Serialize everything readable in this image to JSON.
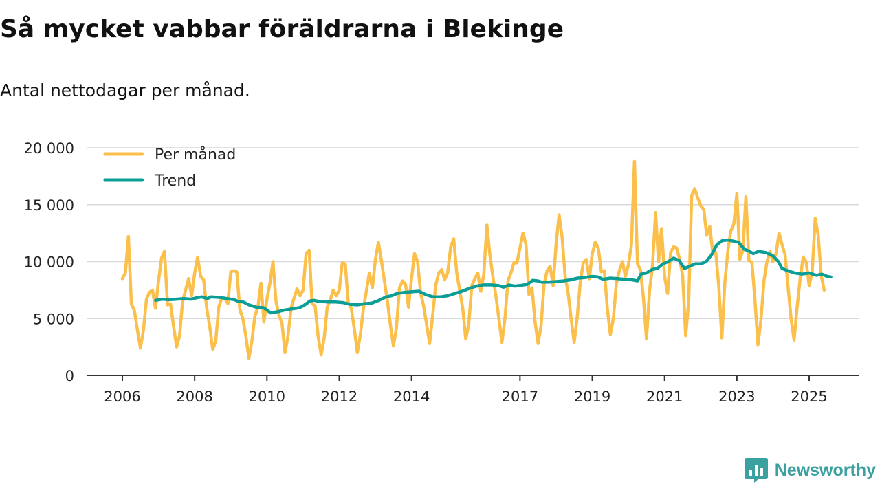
{
  "chart_data": {
    "type": "line",
    "title": "Så mycket vabbar föräldrarna i Blekinge",
    "subtitle": "Antal nettodagar per månad.",
    "xlabel": "",
    "ylabel": "",
    "xlim": [
      2006.0,
      2026.3
    ],
    "ylim": [
      0,
      20000
    ],
    "yticks": [
      0,
      5000,
      10000,
      15000,
      20000
    ],
    "ytick_labels": [
      "0",
      "5 000",
      "10 000",
      "15 000",
      "20 000"
    ],
    "xticks": [
      2006,
      2008,
      2010,
      2012,
      2014,
      2017,
      2019,
      2021,
      2023,
      2025
    ],
    "xtick_labels": [
      "2006",
      "2008",
      "2010",
      "2012",
      "2014",
      "2017",
      "2019",
      "2021",
      "2023",
      "2025"
    ],
    "grid": true,
    "legend_position": "top-left",
    "series": [
      {
        "name": "Per månad",
        "color": "#fbbf4c",
        "start_year": 2006.0,
        "step": 0.0833333,
        "values": [
          8500,
          9000,
          12200,
          6300,
          5700,
          4000,
          2400,
          4000,
          6700,
          7300,
          7500,
          5900,
          8300,
          10300,
          10900,
          6200,
          6300,
          4300,
          2500,
          3500,
          6500,
          7500,
          8500,
          7000,
          9000,
          10400,
          8700,
          8400,
          5900,
          4300,
          2300,
          3000,
          6000,
          6800,
          6800,
          6300,
          9100,
          9200,
          9100,
          5800,
          5000,
          3500,
          1500,
          3000,
          5200,
          6000,
          8100,
          4700,
          6700,
          8100,
          10000,
          6500,
          5300,
          4600,
          2000,
          3500,
          5900,
          6800,
          7600,
          7000,
          7500,
          10700,
          11000,
          6300,
          6100,
          3400,
          1800,
          3300,
          6000,
          6600,
          7500,
          7000,
          7500,
          9900,
          9800,
          6400,
          5900,
          4100,
          2000,
          3600,
          5800,
          7400,
          9000,
          7700,
          10200,
          11700,
          10100,
          8300,
          6500,
          4400,
          2600,
          4200,
          7700,
          8300,
          8000,
          6000,
          8500,
          10700,
          10000,
          7300,
          6100,
          4500,
          2800,
          5200,
          7900,
          9000,
          9300,
          8400,
          9000,
          11300,
          12000,
          9000,
          7500,
          5900,
          3200,
          4500,
          7900,
          8500,
          9000,
          7400,
          8900,
          13200,
          10600,
          8700,
          7000,
          5000,
          2900,
          5000,
          8300,
          9000,
          9900,
          9900,
          11200,
          12500,
          11500,
          7100,
          7700,
          4700,
          2800,
          4400,
          8000,
          9200,
          9600,
          7900,
          11600,
          14100,
          12100,
          8700,
          7200,
          4900,
          2900,
          5100,
          8100,
          9900,
          10200,
          8500,
          10700,
          11700,
          11200,
          9100,
          9200,
          5900,
          3600,
          5000,
          8100,
          9200,
          10000,
          8700,
          9700,
          11500,
          18800,
          9800,
          9300,
          6800,
          3200,
          7400,
          9700,
          14300,
          10000,
          12900,
          8700,
          7200,
          10800,
          11300,
          11200,
          10200,
          8800,
          3500,
          6500,
          15800,
          16400,
          15600,
          14900,
          14600,
          12300,
          13100,
          10800,
          10800,
          7800,
          3300,
          8100,
          10900,
          12700,
          13300,
          16000,
          10200,
          11000,
          15700,
          10100,
          9900,
          6700,
          2700,
          4900,
          8300,
          10000,
          10900,
          10000,
          10700,
          12500,
          11500,
          10600,
          7800,
          5000,
          3100,
          6000,
          8500,
          10400,
          10000,
          7900,
          9100,
          13800,
          12300,
          8800,
          7500
        ]
      },
      {
        "name": "Trend",
        "color": "#0b9e97",
        "points": [
          [
            2006.92,
            6600
          ],
          [
            2007.1,
            6700
          ],
          [
            2007.3,
            6650
          ],
          [
            2007.5,
            6700
          ],
          [
            2007.7,
            6750
          ],
          [
            2007.9,
            6700
          ],
          [
            2008.1,
            6850
          ],
          [
            2008.2,
            6900
          ],
          [
            2008.35,
            6750
          ],
          [
            2008.45,
            6900
          ],
          [
            2008.7,
            6850
          ],
          [
            2008.9,
            6750
          ],
          [
            2009.1,
            6650
          ],
          [
            2009.2,
            6500
          ],
          [
            2009.35,
            6450
          ],
          [
            2009.5,
            6200
          ],
          [
            2009.7,
            6000
          ],
          [
            2009.9,
            5950
          ],
          [
            2010.0,
            5750
          ],
          [
            2010.1,
            5500
          ],
          [
            2010.3,
            5600
          ],
          [
            2010.5,
            5750
          ],
          [
            2010.7,
            5850
          ],
          [
            2010.9,
            5950
          ],
          [
            2011.0,
            6100
          ],
          [
            2011.2,
            6550
          ],
          [
            2011.3,
            6600
          ],
          [
            2011.45,
            6500
          ],
          [
            2011.7,
            6450
          ],
          [
            2011.9,
            6450
          ],
          [
            2012.1,
            6400
          ],
          [
            2012.3,
            6250
          ],
          [
            2012.5,
            6200
          ],
          [
            2012.7,
            6300
          ],
          [
            2012.9,
            6350
          ],
          [
            2013.1,
            6600
          ],
          [
            2013.3,
            6900
          ],
          [
            2013.45,
            7000
          ],
          [
            2013.6,
            7200
          ],
          [
            2013.8,
            7300
          ],
          [
            2014.0,
            7350
          ],
          [
            2014.2,
            7400
          ],
          [
            2014.4,
            7100
          ],
          [
            2014.6,
            6900
          ],
          [
            2014.8,
            6900
          ],
          [
            2015.0,
            7000
          ],
          [
            2015.2,
            7200
          ],
          [
            2015.4,
            7400
          ],
          [
            2015.6,
            7650
          ],
          [
            2015.8,
            7850
          ],
          [
            2016.0,
            7950
          ],
          [
            2016.2,
            7950
          ],
          [
            2016.4,
            7900
          ],
          [
            2016.55,
            7750
          ],
          [
            2016.7,
            7950
          ],
          [
            2016.85,
            7850
          ],
          [
            2017.0,
            7900
          ],
          [
            2017.2,
            8000
          ],
          [
            2017.35,
            8350
          ],
          [
            2017.5,
            8300
          ],
          [
            2017.6,
            8200
          ],
          [
            2017.8,
            8200
          ],
          [
            2018.0,
            8250
          ],
          [
            2018.2,
            8300
          ],
          [
            2018.4,
            8400
          ],
          [
            2018.6,
            8550
          ],
          [
            2018.8,
            8600
          ],
          [
            2019.0,
            8700
          ],
          [
            2019.15,
            8650
          ],
          [
            2019.3,
            8450
          ],
          [
            2019.5,
            8550
          ],
          [
            2019.7,
            8500
          ],
          [
            2019.9,
            8450
          ],
          [
            2020.1,
            8400
          ],
          [
            2020.25,
            8300
          ],
          [
            2020.35,
            8900
          ],
          [
            2020.5,
            9000
          ],
          [
            2020.65,
            9300
          ],
          [
            2020.8,
            9400
          ],
          [
            2020.95,
            9800
          ],
          [
            2021.1,
            10000
          ],
          [
            2021.25,
            10300
          ],
          [
            2021.4,
            10100
          ],
          [
            2021.55,
            9400
          ],
          [
            2021.7,
            9600
          ],
          [
            2021.85,
            9800
          ],
          [
            2022.0,
            9800
          ],
          [
            2022.15,
            10000
          ],
          [
            2022.3,
            10600
          ],
          [
            2022.45,
            11500
          ],
          [
            2022.6,
            11850
          ],
          [
            2022.75,
            11900
          ],
          [
            2022.9,
            11800
          ],
          [
            2023.05,
            11700
          ],
          [
            2023.2,
            11100
          ],
          [
            2023.35,
            10900
          ],
          [
            2023.45,
            10700
          ],
          [
            2023.6,
            10900
          ],
          [
            2023.8,
            10800
          ],
          [
            2024.0,
            10500
          ],
          [
            2024.15,
            10000
          ],
          [
            2024.25,
            9400
          ],
          [
            2024.4,
            9200
          ],
          [
            2024.6,
            9000
          ],
          [
            2024.8,
            8900
          ],
          [
            2025.0,
            9000
          ],
          [
            2025.2,
            8800
          ],
          [
            2025.35,
            8900
          ],
          [
            2025.5,
            8700
          ],
          [
            2025.6,
            8650
          ]
        ]
      }
    ]
  },
  "brand": {
    "name": "Newsworthy",
    "icon": "bar-chart-icon",
    "color": "#3aa0a0"
  }
}
